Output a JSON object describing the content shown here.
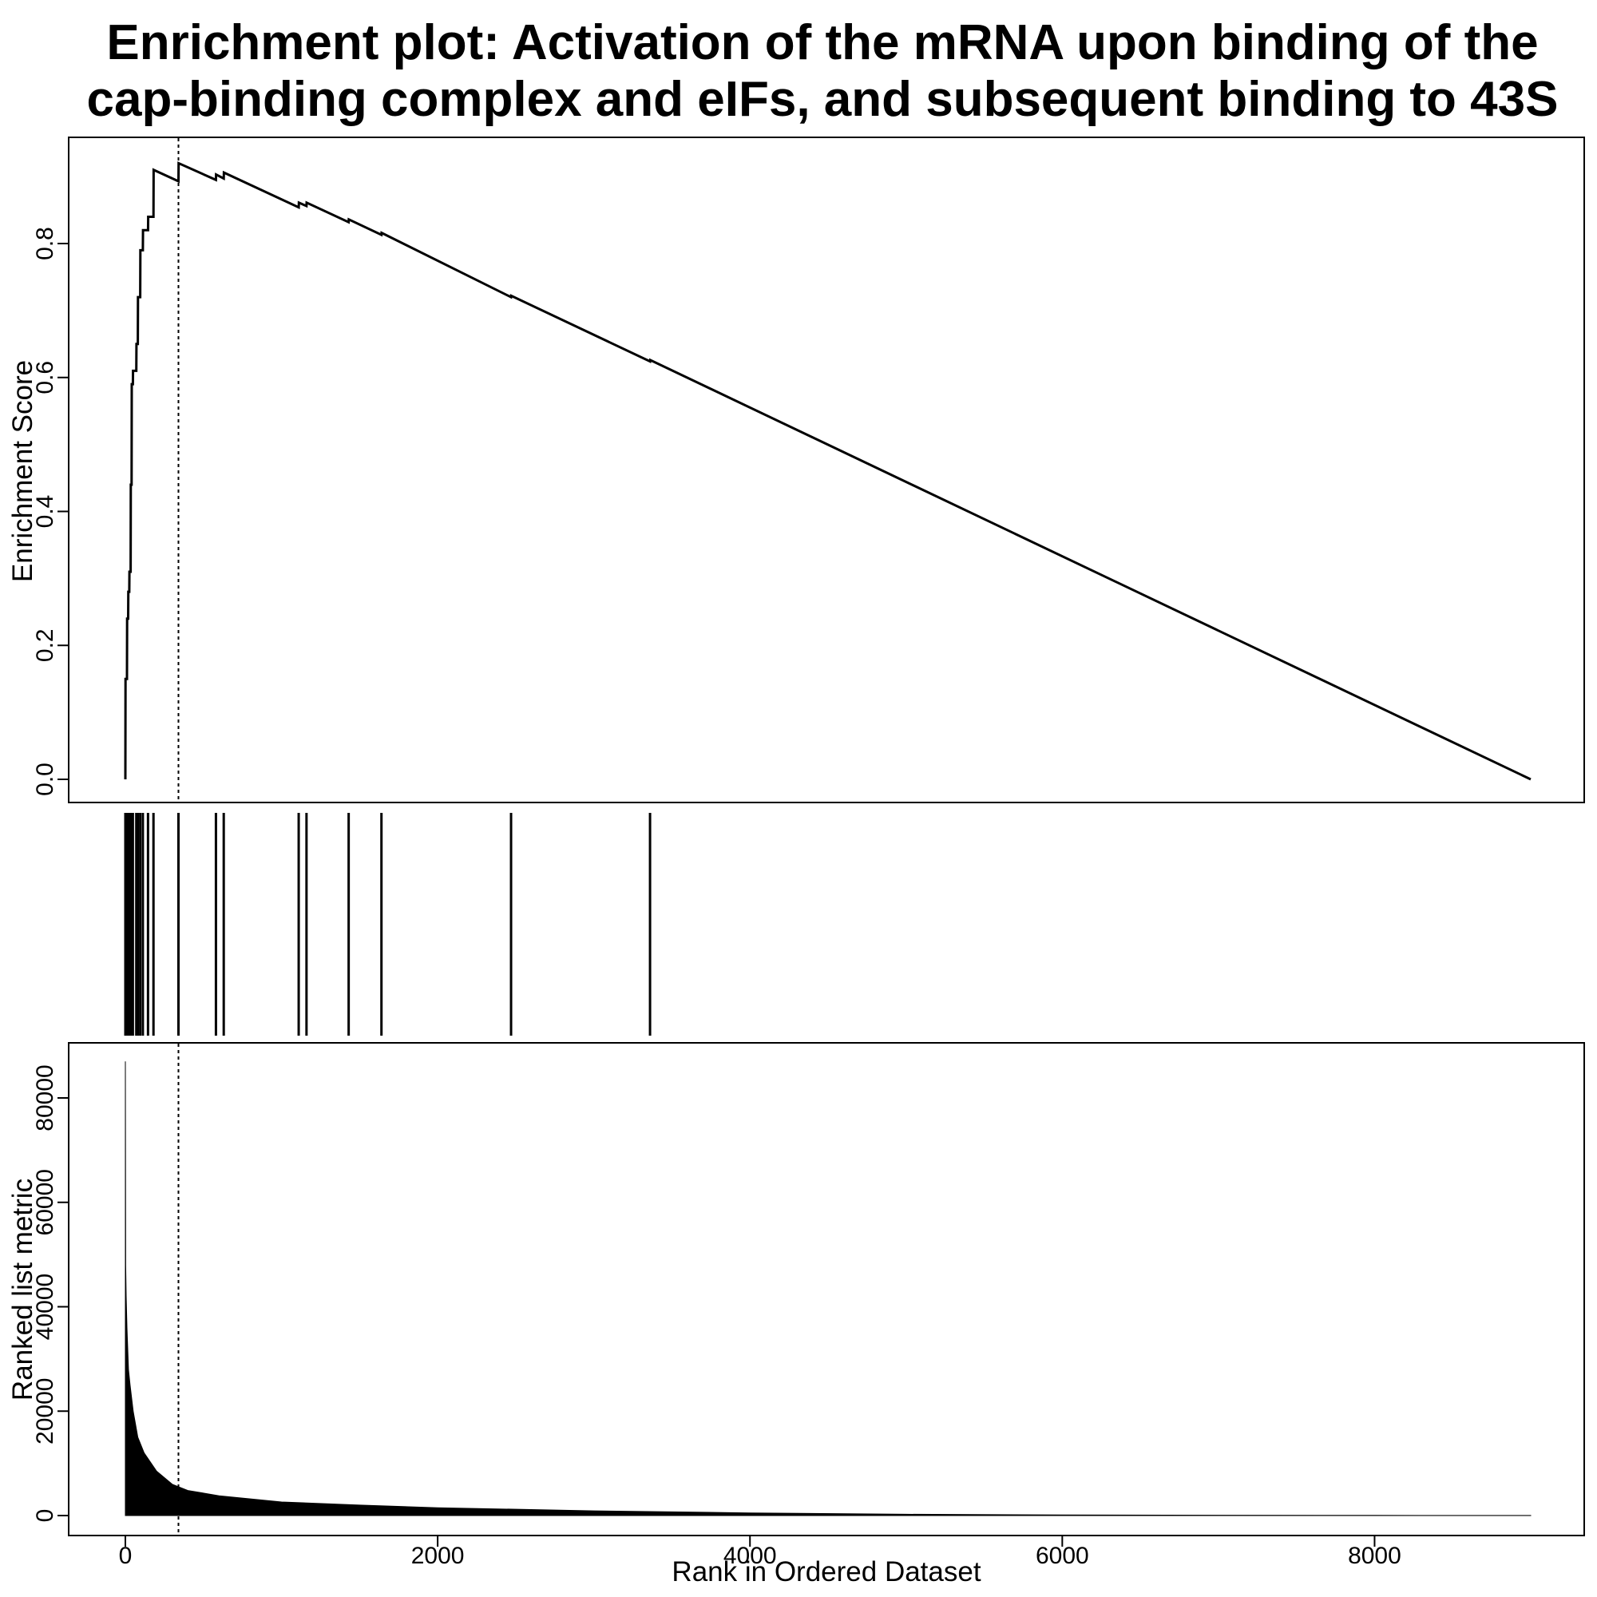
{
  "chart_data": {
    "type": "line",
    "title_lines": [
      "Enrichment plot: Activation of the mRNA upon binding of the",
      "cap-binding complex and eIFs, and subsequent binding to 43S"
    ],
    "xlabel": "Rank in Ordered Dataset",
    "xlim": [
      0,
      9000
    ],
    "x_ticks": [
      0,
      2000,
      4000,
      6000,
      8000
    ],
    "peak_rank": 340,
    "enrichment": {
      "ylabel": "Enrichment Score",
      "ylim": [
        0,
        0.95
      ],
      "y_ticks": [
        0.0,
        0.2,
        0.4,
        0.6,
        0.8
      ],
      "y_tick_labels": [
        "0.0",
        "0.2",
        "0.4",
        "0.6",
        "0.8"
      ],
      "points": [
        [
          0,
          0
        ],
        [
          1,
          0.15
        ],
        [
          10,
          0.15
        ],
        [
          11,
          0.24
        ],
        [
          18,
          0.24
        ],
        [
          19,
          0.28
        ],
        [
          25,
          0.28
        ],
        [
          26,
          0.31
        ],
        [
          34,
          0.31
        ],
        [
          35,
          0.44
        ],
        [
          40,
          0.44
        ],
        [
          41,
          0.59
        ],
        [
          48,
          0.59
        ],
        [
          49,
          0.61
        ],
        [
          70,
          0.61
        ],
        [
          71,
          0.65
        ],
        [
          80,
          0.65
        ],
        [
          81,
          0.72
        ],
        [
          95,
          0.72
        ],
        [
          96,
          0.79
        ],
        [
          112,
          0.79
        ],
        [
          113,
          0.82
        ],
        [
          145,
          0.82
        ],
        [
          146,
          0.84
        ],
        [
          180,
          0.84
        ],
        [
          181,
          0.91
        ],
        [
          340,
          0.893
        ],
        [
          341,
          0.92
        ],
        [
          580,
          0.895
        ],
        [
          581,
          0.903
        ],
        [
          630,
          0.897
        ],
        [
          631,
          0.906
        ],
        [
          1110,
          0.854
        ],
        [
          1111,
          0.861
        ],
        [
          1160,
          0.856
        ],
        [
          1161,
          0.861
        ],
        [
          1430,
          0.832
        ],
        [
          1431,
          0.836
        ],
        [
          1640,
          0.813
        ],
        [
          1641,
          0.816
        ],
        [
          2470,
          0.72
        ],
        [
          2471,
          0.722
        ],
        [
          3360,
          0.624
        ],
        [
          3361,
          0.626
        ],
        [
          9000,
          0
        ]
      ]
    },
    "hits": [
      0,
      10,
      18,
      25,
      34,
      40,
      48,
      70,
      80,
      95,
      112,
      145,
      180,
      340,
      580,
      630,
      1110,
      1160,
      1430,
      1640,
      2470,
      3360
    ],
    "ranked_metric": {
      "ylabel": "Ranked list metric",
      "ylim": [
        0,
        90000
      ],
      "y_ticks": [
        0,
        20000,
        40000,
        60000,
        80000
      ],
      "y_tick_labels": [
        "0",
        "20000",
        "40000",
        "60000",
        "80000"
      ],
      "points": [
        [
          0,
          87000
        ],
        [
          2,
          48000
        ],
        [
          5,
          42000
        ],
        [
          10,
          36000
        ],
        [
          20,
          28000
        ],
        [
          30,
          25000
        ],
        [
          50,
          20000
        ],
        [
          80,
          15000
        ],
        [
          120,
          12000
        ],
        [
          200,
          8500
        ],
        [
          300,
          6000
        ],
        [
          400,
          4800
        ],
        [
          600,
          3800
        ],
        [
          1000,
          2600
        ],
        [
          1500,
          2000
        ],
        [
          2000,
          1500
        ],
        [
          3000,
          900
        ],
        [
          4000,
          500
        ],
        [
          5000,
          250
        ],
        [
          6000,
          120
        ],
        [
          7000,
          60
        ],
        [
          8000,
          30
        ],
        [
          9000,
          10
        ]
      ]
    }
  }
}
